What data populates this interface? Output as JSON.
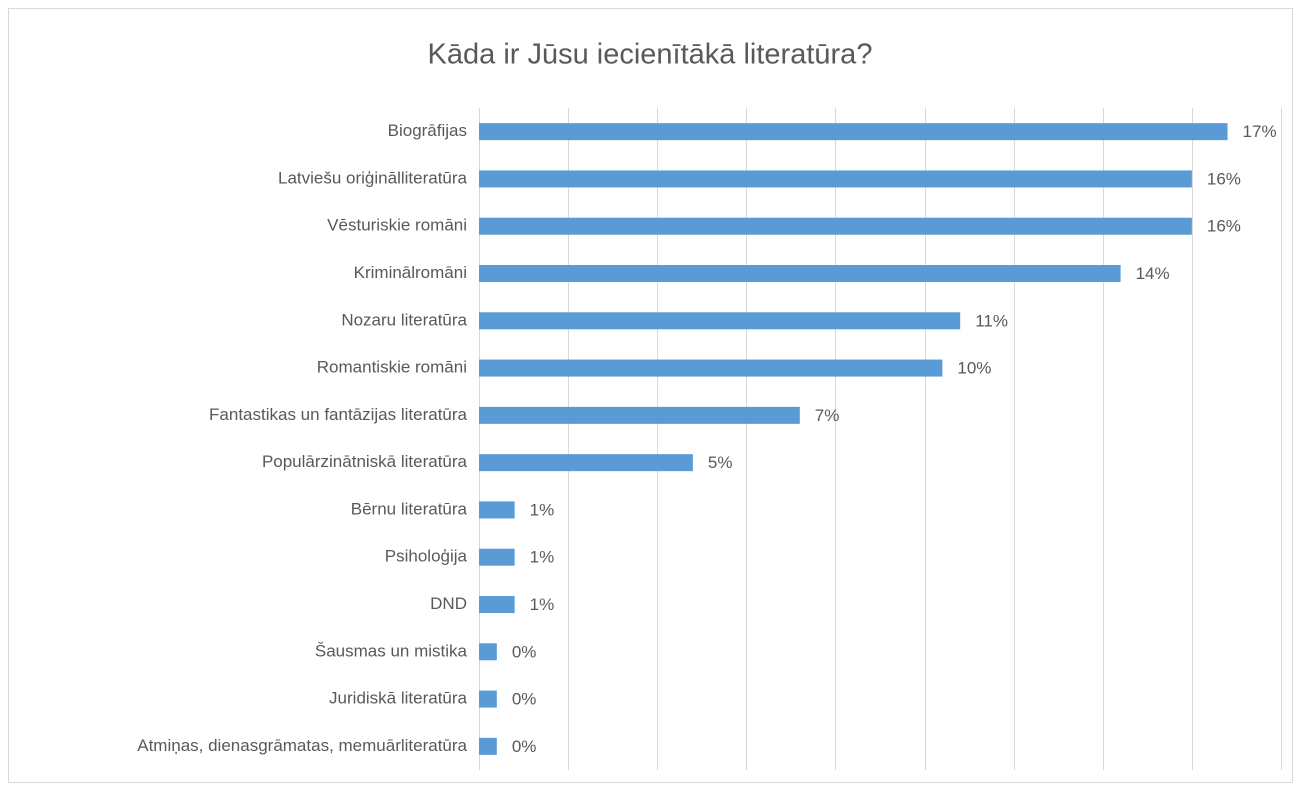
{
  "chart_data": {
    "type": "bar",
    "orientation": "horizontal",
    "title": "Kāda ir Jūsu iecienītākā literatūra?",
    "categories": [
      "Biogrāfijas",
      "Latviešu oriģinālliteratūra",
      "Vēsturiskie romāni",
      "Kriminālromāni",
      "Nozaru literatūra",
      "Romantiskie romāni",
      "Fantastikas un fantāzijas literatūra",
      "Populārzinātniskā literatūra",
      "Bērnu literatūra",
      "Psiholoģija",
      "DND",
      "Šausmas un mistika",
      "Juridiskā literatūra",
      "Atmiņas, dienasgrāmatas, memuārliteratūra"
    ],
    "values": [
      16.8,
      16,
      16,
      14.4,
      10.8,
      10.4,
      7.2,
      4.8,
      0.8,
      0.8,
      0.8,
      0.4,
      0.4,
      0.4
    ],
    "value_labels": [
      "17%",
      "16%",
      "16%",
      "14%",
      "11%",
      "10%",
      "7%",
      "5%",
      "1%",
      "1%",
      "1%",
      "0%",
      "0%",
      "0%"
    ],
    "color": "#5b9bd5",
    "xlim": [
      0,
      18
    ],
    "xticks": [
      0,
      2,
      4,
      6,
      8,
      10,
      12,
      14,
      16,
      18
    ],
    "grid": true
  }
}
